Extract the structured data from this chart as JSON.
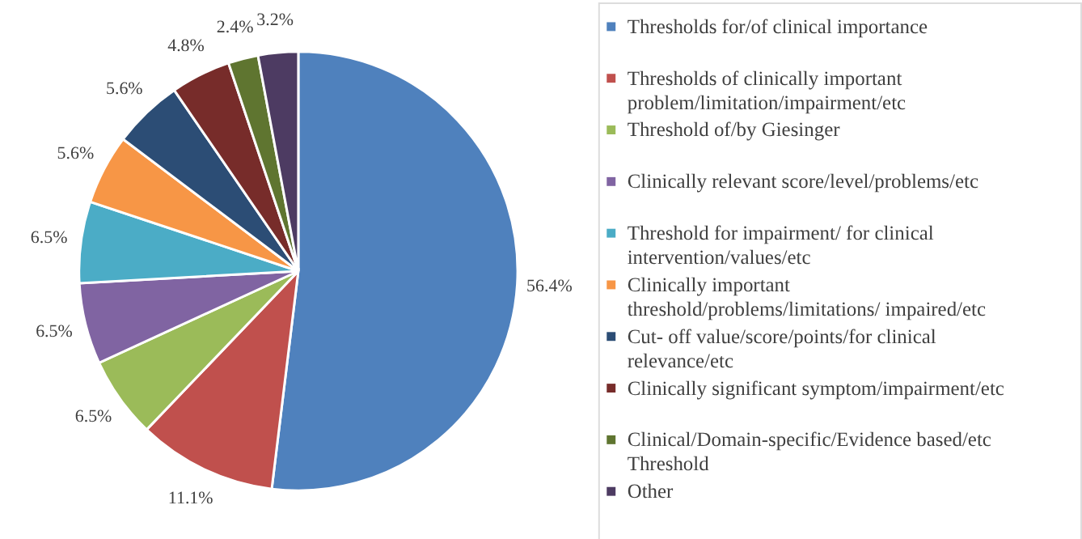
{
  "chart_data": {
    "type": "pie",
    "categories": [
      "Thresholds for/of clinical importance",
      "Thresholds of clinically important problem/limitation/impairment/etc",
      "Threshold of/by Giesinger",
      "Clinically relevant score/level/problems/etc",
      "Threshold for impairment/ for clinical intervention/values/etc",
      "Clinically important threshold/problems/limitations/ impaired/etc",
      "Cut- off value/score/points/for clinical relevance/etc",
      "Clinically significant symptom/impairment/etc",
      "Clinical/Domain-specific/Evidence based/etc Threshold",
      "Other"
    ],
    "values": [
      56.4,
      11.1,
      6.5,
      6.5,
      6.5,
      5.6,
      5.6,
      4.8,
      2.4,
      3.2
    ],
    "value_labels": [
      "56.4%",
      "11.1%",
      "6.5%",
      "6.5%",
      "6.5%",
      "5.6%",
      "5.6%",
      "4.8%",
      "2.4%",
      "3.2%"
    ],
    "colors": [
      "#4f81bd",
      "#c0504d",
      "#9bbb59",
      "#8064a2",
      "#4bacc6",
      "#f79646",
      "#2c4d75",
      "#772c2a",
      "#5f7530",
      "#4d3b62"
    ],
    "legend": "right"
  }
}
